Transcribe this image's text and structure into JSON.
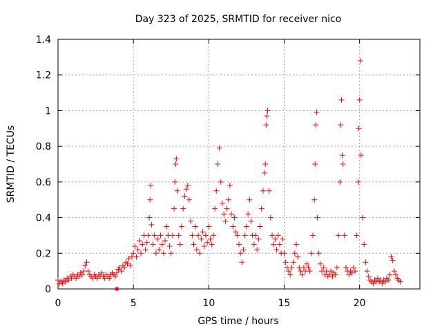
{
  "chart_data": {
    "type": "scatter",
    "title": "Day 323 of 2025, SRMTID for receiver nico",
    "xlabel": "GPS time / hours",
    "ylabel": "SRMTID / TECUs",
    "xlim": [
      0,
      24
    ],
    "ylim": [
      0,
      1.4
    ],
    "xticks": [
      0,
      5,
      10,
      15,
      20
    ],
    "xtick_labels": [
      "0",
      "5",
      "10",
      "15",
      "20"
    ],
    "yticks": [
      0,
      0.2,
      0.4,
      0.6,
      0.8,
      1,
      1.2,
      1.4
    ],
    "ytick_labels": [
      "0",
      "0.2",
      "0.4",
      "0.6",
      "0.8",
      "1",
      "1.2",
      "1.4"
    ],
    "grid": true,
    "marker": "+",
    "color": "#ff0000",
    "series": [
      {
        "name": "SRMTID",
        "points": [
          [
            0.0,
            0.05
          ],
          [
            0.1,
            0.03
          ],
          [
            0.2,
            0.04
          ],
          [
            0.3,
            0.03
          ],
          [
            0.4,
            0.05
          ],
          [
            0.5,
            0.04
          ],
          [
            0.6,
            0.06
          ],
          [
            0.7,
            0.05
          ],
          [
            0.8,
            0.07
          ],
          [
            0.9,
            0.06
          ],
          [
            1.0,
            0.08
          ],
          [
            1.1,
            0.07
          ],
          [
            1.2,
            0.06
          ],
          [
            1.3,
            0.08
          ],
          [
            1.4,
            0.07
          ],
          [
            1.5,
            0.09
          ],
          [
            1.6,
            0.08
          ],
          [
            1.7,
            0.1
          ],
          [
            1.8,
            0.13
          ],
          [
            1.9,
            0.15
          ],
          [
            2.0,
            0.1
          ],
          [
            2.1,
            0.08
          ],
          [
            2.2,
            0.07
          ],
          [
            2.3,
            0.06
          ],
          [
            2.4,
            0.08
          ],
          [
            2.5,
            0.07
          ],
          [
            2.6,
            0.06
          ],
          [
            2.7,
            0.08
          ],
          [
            2.8,
            0.07
          ],
          [
            2.9,
            0.09
          ],
          [
            3.0,
            0.07
          ],
          [
            3.1,
            0.06
          ],
          [
            3.2,
            0.08
          ],
          [
            3.3,
            0.07
          ],
          [
            3.4,
            0.06
          ],
          [
            3.5,
            0.08
          ],
          [
            3.6,
            0.09
          ],
          [
            3.7,
            0.08
          ],
          [
            3.8,
            0.07
          ],
          [
            3.9,
            0.09
          ],
          [
            4.0,
            0.11
          ],
          [
            4.1,
            0.12
          ],
          [
            4.2,
            0.1
          ],
          [
            4.3,
            0.13
          ],
          [
            4.4,
            0.12
          ],
          [
            4.5,
            0.15
          ],
          [
            4.6,
            0.14
          ],
          [
            4.7,
            0.17
          ],
          [
            4.8,
            0.13
          ],
          [
            4.9,
            0.18
          ],
          [
            5.0,
            0.2
          ],
          [
            5.1,
            0.24
          ],
          [
            5.2,
            0.18
          ],
          [
            5.3,
            0.22
          ],
          [
            5.4,
            0.27
          ],
          [
            5.5,
            0.2
          ],
          [
            5.6,
            0.25
          ],
          [
            5.7,
            0.3
          ],
          [
            5.8,
            0.22
          ],
          [
            5.9,
            0.26
          ],
          [
            6.0,
            0.3
          ],
          [
            6.05,
            0.4
          ],
          [
            6.1,
            0.5
          ],
          [
            6.15,
            0.58
          ],
          [
            6.2,
            0.36
          ],
          [
            6.3,
            0.25
          ],
          [
            6.4,
            0.3
          ],
          [
            6.5,
            0.2
          ],
          [
            6.6,
            0.28
          ],
          [
            6.7,
            0.22
          ],
          [
            6.8,
            0.3
          ],
          [
            6.9,
            0.25
          ],
          [
            7.0,
            0.2
          ],
          [
            7.1,
            0.27
          ],
          [
            7.2,
            0.35
          ],
          [
            7.3,
            0.3
          ],
          [
            7.4,
            0.24
          ],
          [
            7.5,
            0.2
          ],
          [
            7.6,
            0.3
          ],
          [
            7.7,
            0.45
          ],
          [
            7.75,
            0.6
          ],
          [
            7.8,
            0.7
          ],
          [
            7.85,
            0.73
          ],
          [
            7.9,
            0.55
          ],
          [
            8.0,
            0.3
          ],
          [
            8.1,
            0.25
          ],
          [
            8.2,
            0.35
          ],
          [
            8.3,
            0.45
          ],
          [
            8.4,
            0.52
          ],
          [
            8.5,
            0.56
          ],
          [
            8.6,
            0.58
          ],
          [
            8.7,
            0.5
          ],
          [
            8.8,
            0.38
          ],
          [
            8.9,
            0.3
          ],
          [
            9.0,
            0.25
          ],
          [
            9.1,
            0.35
          ],
          [
            9.2,
            0.22
          ],
          [
            9.3,
            0.3
          ],
          [
            9.4,
            0.2
          ],
          [
            9.5,
            0.28
          ],
          [
            9.6,
            0.32
          ],
          [
            9.7,
            0.24
          ],
          [
            9.8,
            0.3
          ],
          [
            9.9,
            0.26
          ],
          [
            10.0,
            0.35
          ],
          [
            10.1,
            0.28
          ],
          [
            10.2,
            0.25
          ],
          [
            10.3,
            0.3
          ],
          [
            10.4,
            0.45
          ],
          [
            10.5,
            0.55
          ],
          [
            10.6,
            0.7
          ],
          [
            10.7,
            0.79
          ],
          [
            10.8,
            0.6
          ],
          [
            10.9,
            0.48
          ],
          [
            11.0,
            0.42
          ],
          [
            11.1,
            0.38
          ],
          [
            11.2,
            0.45
          ],
          [
            11.3,
            0.5
          ],
          [
            11.4,
            0.58
          ],
          [
            11.5,
            0.42
          ],
          [
            11.6,
            0.35
          ],
          [
            11.7,
            0.4
          ],
          [
            11.8,
            0.32
          ],
          [
            11.9,
            0.3
          ],
          [
            12.0,
            0.25
          ],
          [
            12.1,
            0.2
          ],
          [
            12.2,
            0.15
          ],
          [
            12.3,
            0.22
          ],
          [
            12.4,
            0.3
          ],
          [
            12.5,
            0.35
          ],
          [
            12.6,
            0.42
          ],
          [
            12.7,
            0.5
          ],
          [
            12.8,
            0.38
          ],
          [
            12.9,
            0.3
          ],
          [
            13.0,
            0.25
          ],
          [
            13.1,
            0.3
          ],
          [
            13.2,
            0.22
          ],
          [
            13.3,
            0.28
          ],
          [
            13.4,
            0.35
          ],
          [
            13.5,
            0.45
          ],
          [
            13.6,
            0.55
          ],
          [
            13.7,
            0.65
          ],
          [
            13.75,
            0.7
          ],
          [
            13.8,
            0.92
          ],
          [
            13.85,
            0.97
          ],
          [
            13.9,
            1.0
          ],
          [
            14.0,
            0.55
          ],
          [
            14.1,
            0.4
          ],
          [
            14.2,
            0.3
          ],
          [
            14.3,
            0.25
          ],
          [
            14.4,
            0.28
          ],
          [
            14.5,
            0.22
          ],
          [
            14.6,
            0.3
          ],
          [
            14.7,
            0.25
          ],
          [
            14.8,
            0.2
          ],
          [
            14.9,
            0.28
          ],
          [
            15.0,
            0.2
          ],
          [
            15.1,
            0.15
          ],
          [
            15.2,
            0.12
          ],
          [
            15.3,
            0.1
          ],
          [
            15.4,
            0.08
          ],
          [
            15.5,
            0.12
          ],
          [
            15.6,
            0.15
          ],
          [
            15.7,
            0.2
          ],
          [
            15.8,
            0.25
          ],
          [
            15.9,
            0.18
          ],
          [
            16.0,
            0.12
          ],
          [
            16.1,
            0.1
          ],
          [
            16.2,
            0.08
          ],
          [
            16.3,
            0.12
          ],
          [
            16.4,
            0.1
          ],
          [
            16.5,
            0.14
          ],
          [
            16.6,
            0.12
          ],
          [
            16.7,
            0.1
          ],
          [
            16.8,
            0.2
          ],
          [
            16.9,
            0.3
          ],
          [
            17.0,
            0.5
          ],
          [
            17.05,
            0.7
          ],
          [
            17.1,
            0.92
          ],
          [
            17.15,
            0.99
          ],
          [
            17.2,
            0.4
          ],
          [
            17.3,
            0.2
          ],
          [
            17.4,
            0.14
          ],
          [
            17.5,
            0.1
          ],
          [
            17.6,
            0.12
          ],
          [
            17.7,
            0.08
          ],
          [
            17.8,
            0.1
          ],
          [
            17.9,
            0.07
          ],
          [
            18.0,
            0.08
          ],
          [
            18.1,
            0.1
          ],
          [
            18.2,
            0.07
          ],
          [
            18.3,
            0.09
          ],
          [
            18.4,
            0.08
          ],
          [
            18.5,
            0.12
          ],
          [
            18.6,
            0.3
          ],
          [
            18.7,
            0.6
          ],
          [
            18.75,
            0.92
          ],
          [
            18.8,
            1.06
          ],
          [
            18.85,
            0.75
          ],
          [
            18.9,
            0.7
          ],
          [
            19.0,
            0.3
          ],
          [
            19.1,
            0.12
          ],
          [
            19.2,
            0.1
          ],
          [
            19.3,
            0.08
          ],
          [
            19.4,
            0.1
          ],
          [
            19.5,
            0.09
          ],
          [
            19.6,
            0.12
          ],
          [
            19.7,
            0.1
          ],
          [
            19.8,
            0.3
          ],
          [
            19.9,
            0.6
          ],
          [
            19.95,
            0.9
          ],
          [
            20.0,
            1.06
          ],
          [
            20.05,
            1.28
          ],
          [
            20.1,
            0.75
          ],
          [
            20.2,
            0.4
          ],
          [
            20.3,
            0.25
          ],
          [
            20.4,
            0.15
          ],
          [
            20.5,
            0.1
          ],
          [
            20.6,
            0.07
          ],
          [
            20.7,
            0.05
          ],
          [
            20.8,
            0.04
          ],
          [
            20.9,
            0.03
          ],
          [
            21.0,
            0.05
          ],
          [
            21.1,
            0.04
          ],
          [
            21.2,
            0.06
          ],
          [
            21.3,
            0.04
          ],
          [
            21.4,
            0.05
          ],
          [
            21.5,
            0.03
          ],
          [
            21.6,
            0.05
          ],
          [
            21.7,
            0.04
          ],
          [
            21.8,
            0.06
          ],
          [
            21.9,
            0.05
          ],
          [
            22.0,
            0.08
          ],
          [
            22.1,
            0.18
          ],
          [
            22.2,
            0.16
          ],
          [
            22.3,
            0.1
          ],
          [
            22.4,
            0.08
          ],
          [
            22.5,
            0.06
          ],
          [
            22.6,
            0.05
          ],
          [
            22.7,
            0.04
          ]
        ]
      },
      {
        "name": "marker",
        "marker": "square",
        "points": [
          [
            3.9,
            0.0
          ]
        ]
      }
    ]
  }
}
